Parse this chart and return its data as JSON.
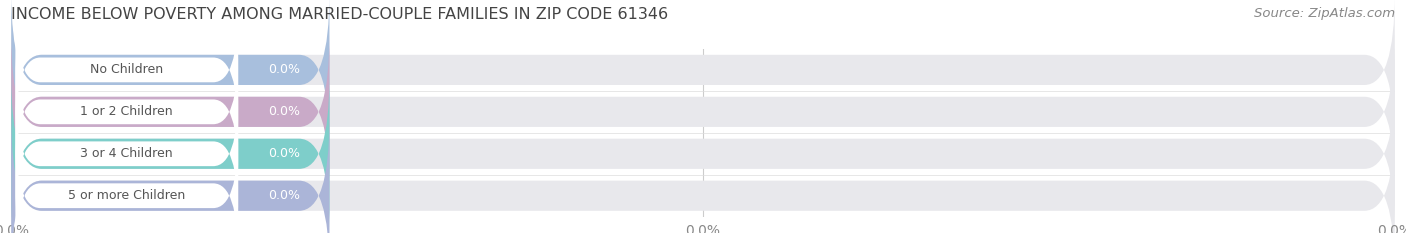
{
  "title": "INCOME BELOW POVERTY AMONG MARRIED-COUPLE FAMILIES IN ZIP CODE 61346",
  "source": "Source: ZipAtlas.com",
  "categories": [
    "No Children",
    "1 or 2 Children",
    "3 or 4 Children",
    "5 or more Children"
  ],
  "values": [
    0.0,
    0.0,
    0.0,
    0.0
  ],
  "bar_colors": [
    "#a8bfdd",
    "#c9aac8",
    "#7ececa",
    "#abb5d8"
  ],
  "bar_bg_color": "#e8e8ec",
  "background_color": "#ffffff",
  "title_fontsize": 11.5,
  "source_fontsize": 9.5,
  "tick_fontsize": 10,
  "cat_label_fontsize": 9,
  "val_label_fontsize": 9
}
